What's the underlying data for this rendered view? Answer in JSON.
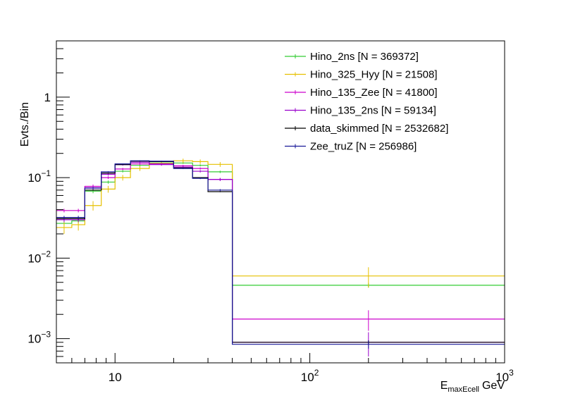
{
  "chart_data": {
    "type": "histogram-step",
    "title": "",
    "xlabel_main": "E",
    "xlabel_sub": "maxEcell",
    "xlabel_unit": "GeV",
    "ylabel": "Evts./Bin",
    "xscale": "log",
    "yscale": "log",
    "xlim": [
      5,
      1000
    ],
    "ylim": [
      0.0005,
      5
    ],
    "x_ticks": [
      {
        "value": 10,
        "base": "10",
        "exp": ""
      },
      {
        "value": 100,
        "base": "10",
        "exp": "2"
      },
      {
        "value": 1000,
        "base": "10",
        "exp": "3"
      }
    ],
    "y_ticks": [
      {
        "value": 0.001,
        "base": "10",
        "exp": "−3"
      },
      {
        "value": 0.01,
        "base": "10",
        "exp": "−2"
      },
      {
        "value": 0.1,
        "base": "10",
        "exp": "−1"
      },
      {
        "value": 1,
        "base": "1",
        "exp": ""
      }
    ],
    "bin_edges": [
      5,
      6,
      7,
      8.5,
      10,
      12,
      15,
      20,
      25,
      30,
      40,
      1000
    ],
    "legend_position": "top-right",
    "series": [
      {
        "name": "Hino_2ns",
        "legend": "Hino_2ns [N = 369372]",
        "color": "#33cc33",
        "values": [
          0.027,
          0.029,
          0.068,
          0.088,
          0.12,
          0.142,
          0.152,
          0.152,
          0.142,
          0.118,
          0.0046
        ],
        "errors": [
          0.002,
          0.002,
          0.004,
          0.004,
          0.004,
          0.004,
          0.004,
          0.004,
          0.004,
          0.004,
          0.0003
        ]
      },
      {
        "name": "Hino_325_Hyy",
        "legend": "Hino_325_Hyy [N = 21508]",
        "color": "#e6c000",
        "values": [
          0.024,
          0.026,
          0.045,
          0.072,
          0.1,
          0.13,
          0.15,
          0.162,
          0.158,
          0.146,
          0.006
        ],
        "errors": [
          0.004,
          0.004,
          0.006,
          0.007,
          0.008,
          0.009,
          0.009,
          0.01,
          0.01,
          0.01,
          0.0017
        ]
      },
      {
        "name": "Hino_135_Zee",
        "legend": "Hino_135_Zee [N = 41800]",
        "color": "#cc00cc",
        "values": [
          0.039,
          0.039,
          0.078,
          0.1,
          0.128,
          0.148,
          0.148,
          0.14,
          0.13,
          0.095,
          0.00175
        ],
        "errors": [
          0.002,
          0.002,
          0.004,
          0.004,
          0.004,
          0.004,
          0.004,
          0.004,
          0.004,
          0.004,
          0.0005
        ]
      },
      {
        "name": "Hino_135_2ns",
        "legend": "Hino_135_2ns [N = 59134]",
        "color": "#9900cc",
        "values": [
          0.03,
          0.03,
          0.075,
          0.11,
          0.145,
          0.155,
          0.145,
          0.135,
          0.12,
          0.095,
          0.0009
        ],
        "errors": [
          0.002,
          0.002,
          0.004,
          0.004,
          0.004,
          0.004,
          0.004,
          0.004,
          0.004,
          0.004,
          0.0003
        ]
      },
      {
        "name": "data_skimmed",
        "legend": "data_skimmed [N = 2532682]",
        "color": "#000000",
        "values": [
          0.031,
          0.031,
          0.07,
          0.114,
          0.145,
          0.16,
          0.158,
          0.132,
          0.1,
          0.067,
          0.0009
        ],
        "errors": [
          0.0008,
          0.0008,
          0.001,
          0.001,
          0.001,
          0.001,
          0.001,
          0.001,
          0.001,
          0.001,
          5e-05
        ]
      },
      {
        "name": "Zee_truZ",
        "legend": "Zee_truZ [N = 256986]",
        "color": "#1a1a99",
        "values": [
          0.032,
          0.032,
          0.074,
          0.118,
          0.148,
          0.162,
          0.16,
          0.13,
          0.098,
          0.07,
          0.00085
        ],
        "errors": [
          0.0015,
          0.0015,
          0.002,
          0.002,
          0.002,
          0.002,
          0.002,
          0.002,
          0.002,
          0.002,
          0.0001
        ]
      }
    ]
  }
}
